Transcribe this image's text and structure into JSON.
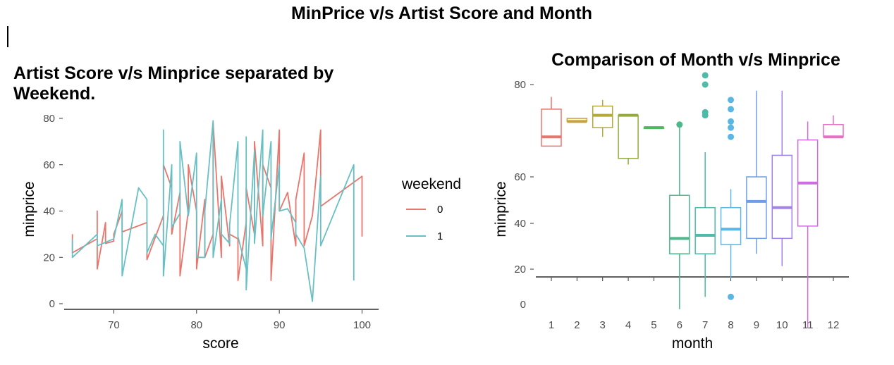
{
  "main_title": "MinPrice v/s Artist Score and Month",
  "chart_data": [
    {
      "type": "line",
      "title": "Artist Score v/s Minprice separated by Weekend.",
      "xlabel": "score",
      "ylabel": "minprice",
      "xlim": [
        64,
        102
      ],
      "ylim": [
        -2,
        81
      ],
      "x_ticks": [
        70,
        80,
        90,
        100
      ],
      "y_ticks": [
        0,
        20,
        40,
        60,
        80
      ],
      "grid": false,
      "legend": {
        "title": "weekend",
        "position": "right"
      },
      "series": [
        {
          "name": "0",
          "color": "#E7766C",
          "x": [
            65,
            65,
            68,
            68,
            68,
            69,
            69,
            70,
            70,
            71,
            71,
            74,
            74,
            76,
            76,
            76,
            77,
            77,
            78,
            78,
            79,
            79,
            80,
            80,
            81,
            81,
            82,
            82,
            83,
            83,
            84,
            84,
            85,
            85,
            86,
            86,
            87,
            87,
            88,
            88,
            89,
            89,
            90,
            90,
            91,
            92,
            92,
            93,
            93,
            94,
            95,
            95,
            100,
            100,
            100
          ],
          "y": [
            30,
            22,
            28,
            40,
            15,
            35,
            26,
            27,
            30,
            40,
            31,
            35,
            19,
            38,
            12,
            60,
            50,
            30,
            48,
            12,
            40,
            60,
            40,
            15,
            45,
            20,
            30,
            78,
            20,
            55,
            25,
            30,
            28,
            10,
            35,
            50,
            30,
            70,
            25,
            60,
            50,
            10,
            75,
            40,
            48,
            25,
            45,
            65,
            25,
            38,
            75,
            42,
            55,
            30,
            29
          ]
        },
        {
          "name": "1",
          "color": "#67C0C4",
          "x": [
            65,
            65,
            68,
            68,
            70,
            71,
            71,
            71,
            73,
            74,
            74,
            75,
            76,
            76,
            76,
            77,
            77,
            78,
            78,
            79,
            80,
            80,
            81,
            81,
            82,
            82,
            83,
            83,
            84,
            84,
            85,
            85,
            86,
            86,
            86,
            87,
            87,
            88,
            88,
            89,
            89,
            90,
            90,
            91,
            92,
            92,
            93,
            94,
            95,
            95,
            99,
            99
          ],
          "y": [
            28,
            20,
            30,
            25,
            28,
            45,
            35,
            12,
            50,
            45,
            22,
            30,
            25,
            75,
            12,
            60,
            33,
            39,
            70,
            38,
            65,
            20,
            20,
            40,
            79,
            20,
            45,
            30,
            26,
            34,
            70,
            29,
            15,
            72,
            6,
            66,
            26,
            75,
            38,
            70,
            28,
            60,
            40,
            41,
            35,
            30,
            24,
            1,
            55,
            25,
            60,
            10
          ]
        }
      ]
    },
    {
      "type": "box",
      "title": "Comparison of Month v/s Minprice",
      "xlabel": "month",
      "ylabel": "minprice",
      "ylim": [
        -3,
        83
      ],
      "y_ticks": [
        0,
        20,
        40,
        60,
        80
      ],
      "categories": [
        "1",
        "2",
        "3",
        "4",
        "5",
        "6",
        "7",
        "8",
        "9",
        "10",
        "11",
        "12"
      ],
      "boxes": [
        {
          "month": "1",
          "color": "#E7766C",
          "min": 60,
          "q1": 60,
          "median": 63,
          "q3": 72,
          "max": 76,
          "outliers": []
        },
        {
          "month": "2",
          "color": "#C9A13B",
          "min": 68,
          "q1": 68,
          "median": 68,
          "q3": 69,
          "max": 69,
          "outliers": []
        },
        {
          "month": "3",
          "color": "#B5A83D",
          "min": 63,
          "q1": 66,
          "median": 70,
          "q3": 73,
          "max": 75,
          "outliers": []
        },
        {
          "month": "4",
          "color": "#93AA3F",
          "min": 54,
          "q1": 56,
          "median": 70,
          "q3": 70,
          "max": 70,
          "outliers": []
        },
        {
          "month": "5",
          "color": "#4DB85F",
          "min": 66,
          "q1": 66,
          "median": 66,
          "q3": 66,
          "max": 66,
          "outliers": []
        },
        {
          "month": "6",
          "color": "#4DB88A",
          "min": 7,
          "q1": 25,
          "median": 30,
          "q3": 44,
          "max": 67,
          "outliers": [
            67
          ]
        },
        {
          "month": "7",
          "color": "#4DBBA8",
          "min": 11,
          "q1": 25,
          "median": 31,
          "q3": 40,
          "max": 58,
          "outliers": [
            83,
            80,
            70,
            71
          ]
        },
        {
          "month": "8",
          "color": "#5CB6E3",
          "min": 17,
          "q1": 28,
          "median": 33,
          "q3": 40,
          "max": 46,
          "outliers": [
            11,
            75,
            72,
            68,
            66,
            63
          ]
        },
        {
          "month": "9",
          "color": "#6F9EE8",
          "min": 25,
          "q1": 30,
          "median": 42,
          "q3": 50,
          "max": 78,
          "outliers": []
        },
        {
          "month": "10",
          "color": "#A281E8",
          "min": 21,
          "q1": 30,
          "median": 40,
          "q3": 57,
          "max": 78,
          "outliers": []
        },
        {
          "month": "11",
          "color": "#CD6EE0",
          "min": 1,
          "q1": 34,
          "median": 48,
          "q3": 62,
          "max": 68,
          "outliers": []
        },
        {
          "month": "12",
          "color": "#E76FC6",
          "min": 63,
          "q1": 63,
          "median": 63,
          "q3": 67,
          "max": 70,
          "outliers": []
        }
      ]
    }
  ]
}
